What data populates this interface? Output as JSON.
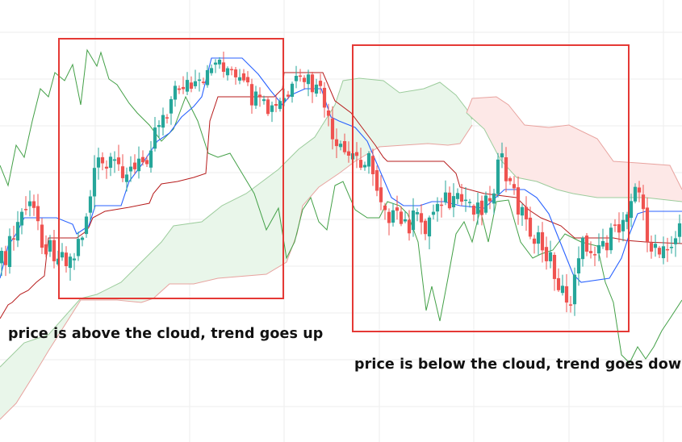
{
  "chart_data": {
    "type": "candlestick",
    "indicator": "ichimoku",
    "grid": true,
    "axes_visible": false,
    "colors": {
      "bull_candle": "#26a69a",
      "bear_candle": "#ef5350",
      "tenkan_line": "#2962ff",
      "kijun_line": "#b71c1c",
      "chikou_line": "#43a047",
      "cloud_bullish": "#e8f5e9",
      "cloud_bearish": "#fde7e6",
      "highlight_box": "#e53935",
      "grid": "#eeeeee"
    },
    "annotations": [
      {
        "text": "price is above the cloud, trend goes up"
      },
      {
        "text": "price is below the cloud, trend goes down"
      }
    ]
  }
}
